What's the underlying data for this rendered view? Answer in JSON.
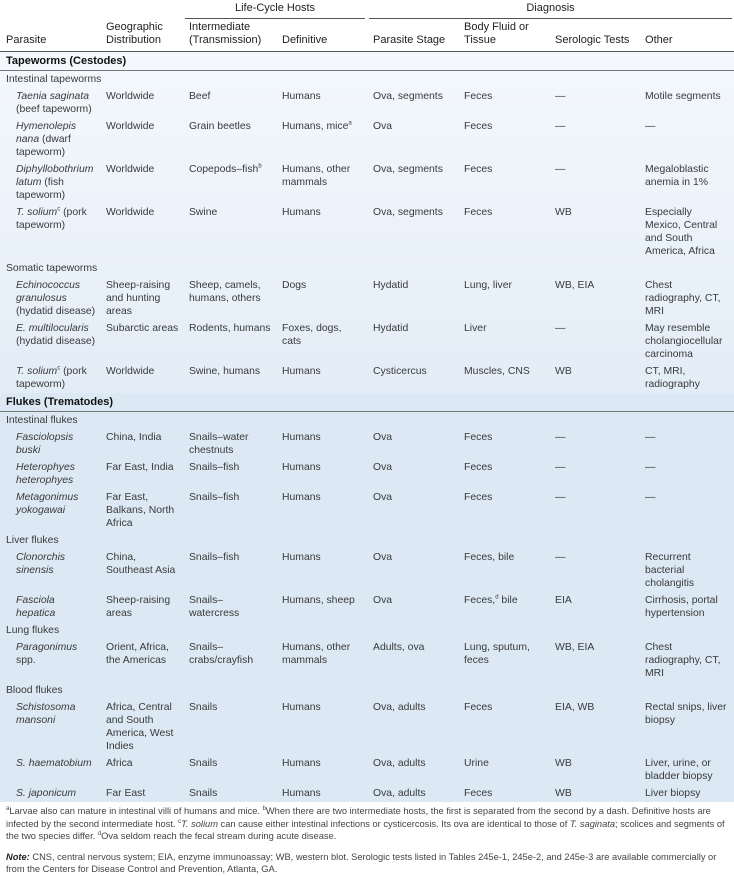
{
  "header": {
    "group_life_cycle": "Life-Cycle Hosts",
    "group_diagnosis": "Diagnosis",
    "columns": [
      "Parasite",
      "Geographic Distribution",
      "Intermediate (Transmission)",
      "Definitive",
      "Parasite Stage",
      "Body Fluid or Tissue",
      "Serologic Tests",
      "Other"
    ]
  },
  "sections": [
    {
      "title": "Tapeworms (Cestodes)",
      "style": "tape",
      "groups": [
        {
          "title": "Intestinal tapeworms",
          "rows": [
            {
              "name": "Taenia saginata",
              "sup": "",
              "common": "(beef tapeworm)",
              "cells": [
                "Worldwide",
                "Beef",
                "Humans",
                "Ova, segments",
                "Feces",
                "—",
                "Motile segments"
              ]
            },
            {
              "name": "Hymenolepis nana",
              "sup": "",
              "common": "(dwarf tapeworm)",
              "cells": [
                "Worldwide",
                "Grain beetles",
                "Humans, mice|a",
                "Ova",
                "Feces",
                "—",
                "—"
              ]
            },
            {
              "name": "Diphyllobothrium latum",
              "sup": "",
              "common": "(fish tapeworm)",
              "cells": [
                "Worldwide",
                "Copepods–fish|b",
                "Humans, other mammals",
                "Ova, segments",
                "Feces",
                "—",
                "Megaloblastic anemia in 1%"
              ]
            },
            {
              "name": "T. solium",
              "sup": "c",
              "common": "(pork tapeworm)",
              "cells": [
                "Worldwide",
                "Swine",
                "Humans",
                "Ova, segments",
                "Feces",
                "WB",
                "Especially Mexico, Central and South America, Africa"
              ]
            }
          ]
        },
        {
          "title": "Somatic tapeworms",
          "rows": [
            {
              "name": "Echinococcus granulosus",
              "sup": "",
              "common": "(hydatid disease)",
              "cells": [
                "Sheep-raising and hunting areas",
                "Sheep, camels, humans, others",
                "Dogs",
                "Hydatid",
                "Lung, liver",
                "WB, EIA",
                "Chest radiography, CT, MRI"
              ]
            },
            {
              "name": "E. multilocularis",
              "sup": "",
              "common": "(hydatid disease)",
              "cells": [
                "Subarctic areas",
                "Rodents, humans",
                "Foxes, dogs, cats",
                "Hydatid",
                "Liver",
                "—",
                "May resemble cholangiocellular carcinoma"
              ]
            },
            {
              "name": "T. solium",
              "sup": "c",
              "common": "(pork tapeworm)",
              "cells": [
                "Worldwide",
                "Swine, humans",
                "Humans",
                "Cysticercus",
                "Muscles, CNS",
                "WB",
                "CT, MRI, radiography"
              ]
            }
          ]
        }
      ]
    },
    {
      "title": "Flukes (Trematodes)",
      "style": "fluke",
      "groups": [
        {
          "title": "Intestinal flukes",
          "rows": [
            {
              "name": "Fasciolopsis buski",
              "sup": "",
              "common": "",
              "cells": [
                "China, India",
                "Snails–water chestnuts",
                "Humans",
                "Ova",
                "Feces",
                "—",
                "—"
              ]
            },
            {
              "name": "Heterophyes heterophyes",
              "sup": "",
              "common": "",
              "cells": [
                "Far East, India",
                "Snails–fish",
                "Humans",
                "Ova",
                "Feces",
                "—",
                "—"
              ]
            },
            {
              "name": "Metagonimus yokogawai",
              "sup": "",
              "common": "",
              "cells": [
                "Far East, Balkans, North Africa",
                "Snails–fish",
                "Humans",
                "Ova",
                "Feces",
                "—",
                "—"
              ]
            }
          ]
        },
        {
          "title": "Liver flukes",
          "rows": [
            {
              "name": "Clonorchis sinensis",
              "sup": "",
              "common": "",
              "cells": [
                "China, Southeast Asia",
                "Snails–fish",
                "Humans",
                "Ova",
                "Feces, bile",
                "—",
                "Recurrent bacterial cholangitis"
              ]
            },
            {
              "name": "Fasciola hepatica",
              "sup": "",
              "common": "",
              "cells": [
                "Sheep-raising areas",
                "Snails–watercress",
                "Humans, sheep",
                "Ova",
                "Feces,|d| bile",
                "EIA",
                "Cirrhosis, portal hypertension"
              ]
            }
          ]
        },
        {
          "title": "Lung flukes",
          "rows": [
            {
              "name": "Paragonimus",
              "sup": "",
              "common": "spp.",
              "cells": [
                "Orient, Africa, the Americas",
                "Snails–crabs/crayfish",
                "Humans, other mammals",
                "Adults, ova",
                "Lung, sputum, feces",
                "WB, EIA",
                "Chest radiography, CT, MRI"
              ]
            }
          ]
        },
        {
          "title": "Blood flukes",
          "rows": [
            {
              "name": "Schistosoma mansoni",
              "sup": "",
              "common": "",
              "cells": [
                "Africa, Central and South America, West Indies",
                "Snails",
                "Humans",
                "Ova, adults",
                "Feces",
                "EIA, WB",
                "Rectal snips, liver biopsy"
              ]
            },
            {
              "name": "S. haematobium",
              "sup": "",
              "common": "",
              "cells": [
                "Africa",
                "Snails",
                "Humans",
                "Ova, adults",
                "Urine",
                "WB",
                "Liver, urine, or bladder biopsy"
              ]
            },
            {
              "name": "S. japonicum",
              "sup": "",
              "common": "",
              "cells": [
                "Far East",
                "Snails",
                "Humans",
                "Ova, adults",
                "Feces",
                "WB",
                "Liver biopsy"
              ]
            }
          ]
        }
      ]
    }
  ],
  "footnotes": [
    {
      "sup": "a",
      "text": "Larvae also can mature in intestinal villi of humans and mice. "
    },
    {
      "sup": "b",
      "text": "When there are two intermediate hosts, the first is separated from the second by a dash. Definitive hosts are infected by the second intermediate host. "
    },
    {
      "sup": "c",
      "text": "",
      "italic": "T. solium",
      "text2": " can cause either intestinal infections or cysticercosis. Its ova are identical to those of ",
      "italic2": "T. saginata",
      "text3": "; scolices and segments of the two species differ. "
    },
    {
      "sup": "d",
      "text": "Ova seldom reach the fecal stream during acute disease."
    }
  ],
  "note": {
    "label": "Note:",
    "text": " CNS, central nervous system; EIA, enzyme immunoassay; WB, western blot. Serologic tests listed in Tables 245e-1, 245e-2, and 245e-3 are available commercially or from the Centers for Disease Control and Prevention, Atlanta, GA."
  }
}
